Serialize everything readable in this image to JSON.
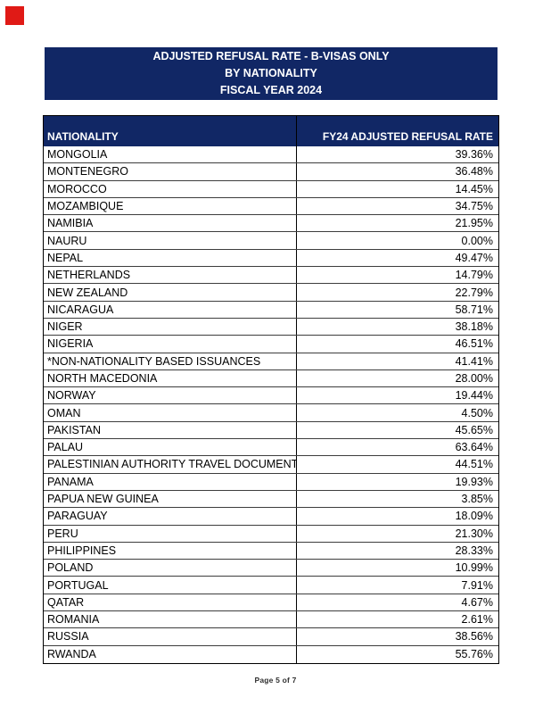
{
  "colors": {
    "navy": "#112765",
    "red": "#e01a16",
    "grid": "#3d3d3d"
  },
  "title_block": {
    "lines": [
      "ADJUSTED REFUSAL RATE - B-VISAS ONLY",
      "BY NATIONALITY",
      "FISCAL YEAR 2024"
    ]
  },
  "table": {
    "headers": [
      "NATIONALITY",
      "FY24 ADJUSTED REFUSAL RATE"
    ],
    "rows": [
      {
        "nationality": "MONGOLIA",
        "rate": "39.36%"
      },
      {
        "nationality": "MONTENEGRO",
        "rate": "36.48%"
      },
      {
        "nationality": "MOROCCO",
        "rate": "14.45%"
      },
      {
        "nationality": "MOZAMBIQUE",
        "rate": "34.75%"
      },
      {
        "nationality": "NAMIBIA",
        "rate": "21.95%"
      },
      {
        "nationality": "NAURU",
        "rate": "0.00%"
      },
      {
        "nationality": "NEPAL",
        "rate": "49.47%"
      },
      {
        "nationality": "NETHERLANDS",
        "rate": "14.79%"
      },
      {
        "nationality": "NEW ZEALAND",
        "rate": "22.79%"
      },
      {
        "nationality": "NICARAGUA",
        "rate": "58.71%"
      },
      {
        "nationality": "NIGER",
        "rate": "38.18%"
      },
      {
        "nationality": "NIGERIA",
        "rate": "46.51%"
      },
      {
        "nationality": "*NON-NATIONALITY BASED ISSUANCES",
        "rate": "41.41%"
      },
      {
        "nationality": "NORTH MACEDONIA",
        "rate": "28.00%"
      },
      {
        "nationality": "NORWAY",
        "rate": "19.44%"
      },
      {
        "nationality": "OMAN",
        "rate": "4.50%"
      },
      {
        "nationality": "PAKISTAN",
        "rate": "45.65%"
      },
      {
        "nationality": "PALAU",
        "rate": "63.64%"
      },
      {
        "nationality": "PALESTINIAN AUTHORITY TRAVEL DOCUMENT",
        "rate": "44.51%"
      },
      {
        "nationality": "PANAMA",
        "rate": "19.93%"
      },
      {
        "nationality": "PAPUA NEW GUINEA",
        "rate": "3.85%"
      },
      {
        "nationality": "PARAGUAY",
        "rate": "18.09%"
      },
      {
        "nationality": "PERU",
        "rate": "21.30%"
      },
      {
        "nationality": "PHILIPPINES",
        "rate": "28.33%"
      },
      {
        "nationality": "POLAND",
        "rate": "10.99%"
      },
      {
        "nationality": "PORTUGAL",
        "rate": "7.91%"
      },
      {
        "nationality": "QATAR",
        "rate": "4.67%"
      },
      {
        "nationality": "ROMANIA",
        "rate": "2.61%"
      },
      {
        "nationality": "RUSSIA",
        "rate": "38.56%"
      },
      {
        "nationality": "RWANDA",
        "rate": "55.76%"
      }
    ]
  },
  "footer": {
    "text": "Page 5 of 7"
  }
}
